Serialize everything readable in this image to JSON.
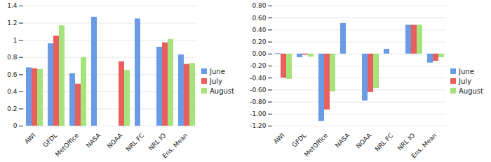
{
  "chart_data": [
    {
      "type": "bar",
      "categories": [
        "AWI",
        "GFDL",
        "MetOffice",
        "NASA",
        "NOAA",
        "NRL FC",
        "NRL IO",
        "Ens. Mean"
      ],
      "series": [
        {
          "name": "June",
          "color": "#6a9be6",
          "values": [
            0.68,
            0.96,
            0.61,
            1.27,
            null,
            1.25,
            0.92,
            0.83
          ]
        },
        {
          "name": "July",
          "color": "#e8605e",
          "values": [
            0.67,
            1.05,
            0.49,
            null,
            0.75,
            null,
            0.97,
            0.72
          ]
        },
        {
          "name": "August",
          "color": "#a6e37a",
          "values": [
            0.66,
            1.17,
            0.8,
            null,
            0.65,
            null,
            1.01,
            0.73
          ]
        }
      ],
      "ylim": [
        0,
        1.4
      ],
      "yticks": [
        0,
        0.2,
        0.4,
        0.6,
        0.8,
        1,
        1.2,
        1.4
      ],
      "grid": true,
      "legend": "right"
    },
    {
      "type": "bar",
      "categories": [
        "AWI",
        "GFDL",
        "MetOffice",
        "NASA",
        "NOAA",
        "NRL FC",
        "NRL IO",
        "Ens. Mean"
      ],
      "series": [
        {
          "name": "June",
          "color": "#6a9be6",
          "values": [
            0.01,
            -0.06,
            -1.12,
            0.51,
            -0.78,
            0.08,
            0.48,
            -0.15
          ]
        },
        {
          "name": "July",
          "color": "#e8605e",
          "values": [
            -0.4,
            -0.02,
            -0.93,
            null,
            -0.64,
            null,
            0.48,
            -0.12
          ]
        },
        {
          "name": "August",
          "color": "#a6e37a",
          "values": [
            -0.42,
            -0.05,
            -0.63,
            null,
            -0.57,
            null,
            0.48,
            -0.06
          ]
        }
      ],
      "ylim": [
        -1.2,
        0.8
      ],
      "yticks": [
        {
          "value": -1.2,
          "label": "-1.20"
        },
        {
          "value": -1,
          "label": "-1.00"
        },
        {
          "value": -0.8,
          "label": "-0.80"
        },
        {
          "value": -0.6,
          "label": "-0.60"
        },
        {
          "value": -0.4,
          "label": "-0.40"
        },
        {
          "value": -0.2,
          "label": "-0.20"
        },
        {
          "value": 0,
          "label": "0.00"
        },
        {
          "value": 0.2,
          "label": "0.20"
        },
        {
          "value": 0.4,
          "label": "0.40"
        },
        {
          "value": 0.6,
          "label": "0.60"
        },
        {
          "value": 0.8,
          "label": "0.80"
        }
      ],
      "grid": true,
      "legend": "right"
    }
  ]
}
